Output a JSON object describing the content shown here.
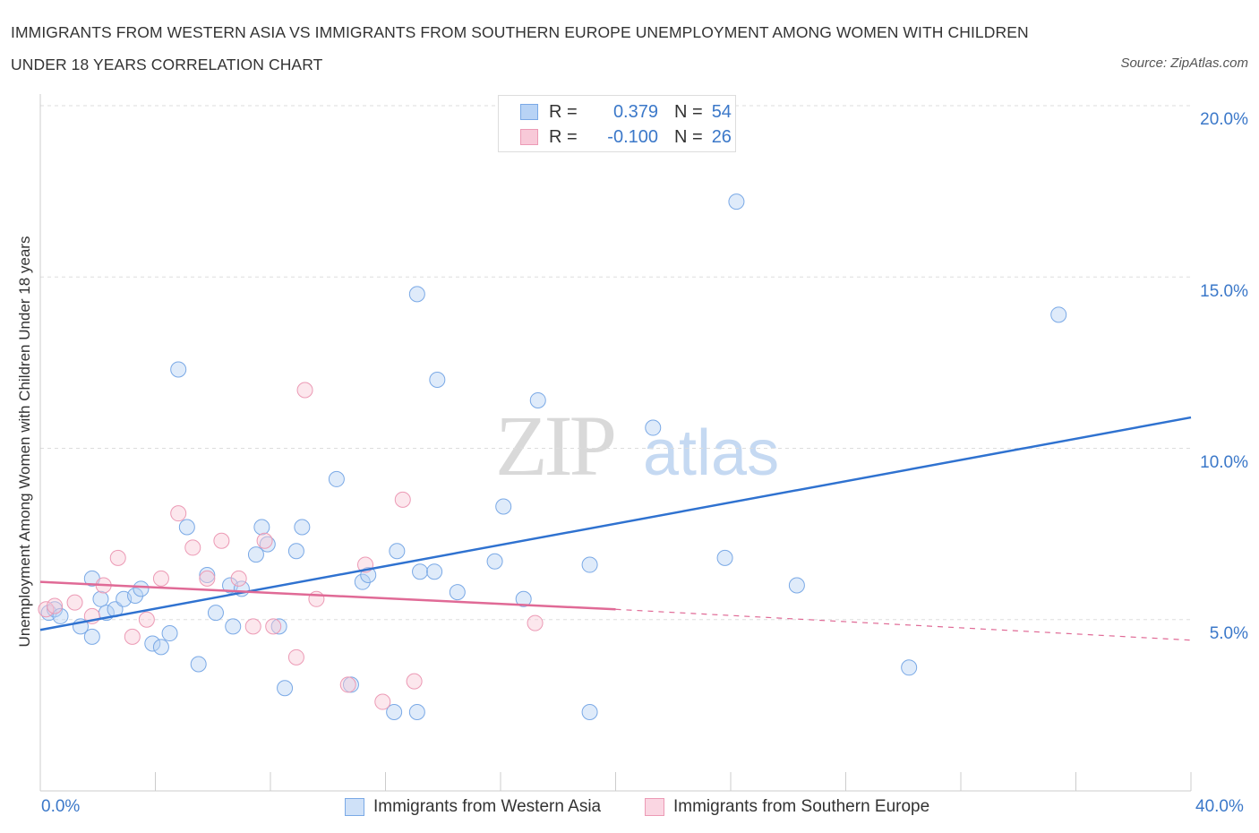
{
  "title": "IMMIGRANTS FROM WESTERN ASIA VS IMMIGRANTS FROM SOUTHERN EUROPE UNEMPLOYMENT AMONG WOMEN WITH CHILDREN UNDER 18 YEARS CORRELATION CHART",
  "source": "Source: ZipAtlas.com",
  "watermark": {
    "zip": "ZIP",
    "atlas": "atlas"
  },
  "legend": {
    "r_label": "R =",
    "n_label": "N =",
    "series": [
      {
        "r": "0.379",
        "n": "54",
        "fill": "#b8d3f5",
        "stroke": "#7aa9e6"
      },
      {
        "r": "-0.100",
        "n": "26",
        "fill": "#f8c9d8",
        "stroke": "#ec9ab5"
      }
    ]
  },
  "colors": {
    "blue_line": "#2f72d0",
    "pink_line": "#e06a96",
    "axis_text": "#3b78c9",
    "grid": "#dddddd"
  },
  "chart_data": {
    "type": "scatter",
    "title": "IMMIGRANTS FROM WESTERN ASIA VS IMMIGRANTS FROM SOUTHERN EUROPE UNEMPLOYMENT AMONG WOMEN WITH CHILDREN UNDER 18 YEARS CORRELATION CHART",
    "xlabel": "",
    "ylabel": "Unemployment Among Women with Children Under 18 years",
    "xlim": [
      0,
      40
    ],
    "ylim": [
      0,
      20
    ],
    "x_tick_labels": [
      "0.0%",
      "40.0%"
    ],
    "y_tick_labels": [
      "20.0%",
      "15.0%",
      "10.0%",
      "5.0%"
    ],
    "y_ticks": [
      20,
      15,
      10,
      5
    ],
    "grid": true,
    "legend_position": "top-center",
    "series": [
      {
        "name": "Immigrants from Western Asia",
        "color": "#7aa9e6",
        "trend": {
          "x0": 0,
          "y0": 4.7,
          "x1": 40,
          "y1": 10.9
        },
        "points": [
          [
            0.3,
            5.2
          ],
          [
            0.5,
            5.3
          ],
          [
            0.7,
            5.1
          ],
          [
            1.4,
            4.8
          ],
          [
            1.8,
            4.5
          ],
          [
            1.8,
            6.2
          ],
          [
            2.1,
            5.6
          ],
          [
            2.3,
            5.2
          ],
          [
            2.6,
            5.3
          ],
          [
            2.9,
            5.6
          ],
          [
            3.3,
            5.7
          ],
          [
            3.5,
            5.9
          ],
          [
            3.9,
            4.3
          ],
          [
            4.2,
            4.2
          ],
          [
            4.5,
            4.6
          ],
          [
            4.8,
            12.3
          ],
          [
            5.1,
            7.7
          ],
          [
            5.5,
            3.7
          ],
          [
            5.8,
            6.3
          ],
          [
            6.1,
            5.2
          ],
          [
            6.6,
            6.0
          ],
          [
            6.7,
            4.8
          ],
          [
            7.0,
            5.9
          ],
          [
            7.5,
            6.9
          ],
          [
            7.7,
            7.7
          ],
          [
            7.9,
            7.2
          ],
          [
            8.3,
            4.8
          ],
          [
            8.5,
            3.0
          ],
          [
            8.9,
            7.0
          ],
          [
            9.1,
            7.7
          ],
          [
            10.3,
            9.1
          ],
          [
            10.8,
            3.1
          ],
          [
            11.2,
            6.1
          ],
          [
            11.4,
            6.3
          ],
          [
            12.3,
            2.3
          ],
          [
            12.4,
            7.0
          ],
          [
            13.1,
            2.3
          ],
          [
            13.1,
            14.5
          ],
          [
            13.2,
            6.4
          ],
          [
            13.7,
            6.4
          ],
          [
            13.8,
            12.0
          ],
          [
            14.5,
            5.8
          ],
          [
            15.8,
            6.7
          ],
          [
            16.1,
            8.3
          ],
          [
            16.8,
            5.6
          ],
          [
            17.3,
            11.4
          ],
          [
            19.1,
            6.6
          ],
          [
            19.1,
            2.3
          ],
          [
            21.3,
            10.6
          ],
          [
            23.8,
            6.8
          ],
          [
            24.2,
            17.2
          ],
          [
            26.3,
            6.0
          ],
          [
            30.2,
            3.6
          ],
          [
            35.4,
            13.9
          ]
        ]
      },
      {
        "name": "Immigrants from Southern Europe",
        "color": "#ec9ab5",
        "trend": {
          "x0": 0,
          "y0": 6.1,
          "x1": 20,
          "y1": 5.3,
          "dashed_to": {
            "x": 40,
            "y": 4.4
          }
        },
        "points": [
          [
            0.2,
            5.3
          ],
          [
            0.5,
            5.4
          ],
          [
            1.2,
            5.5
          ],
          [
            1.8,
            5.1
          ],
          [
            2.2,
            6.0
          ],
          [
            2.7,
            6.8
          ],
          [
            3.2,
            4.5
          ],
          [
            3.7,
            5.0
          ],
          [
            4.2,
            6.2
          ],
          [
            4.8,
            8.1
          ],
          [
            5.3,
            7.1
          ],
          [
            5.8,
            6.2
          ],
          [
            6.3,
            7.3
          ],
          [
            6.9,
            6.2
          ],
          [
            7.4,
            4.8
          ],
          [
            7.8,
            7.3
          ],
          [
            8.1,
            4.8
          ],
          [
            8.9,
            3.9
          ],
          [
            9.2,
            11.7
          ],
          [
            9.6,
            5.6
          ],
          [
            10.7,
            3.1
          ],
          [
            11.3,
            6.6
          ],
          [
            11.9,
            2.6
          ],
          [
            12.6,
            8.5
          ],
          [
            13.0,
            3.2
          ],
          [
            17.2,
            4.9
          ]
        ]
      }
    ]
  },
  "bottom_legend": [
    "Immigrants from Western Asia",
    "Immigrants from Southern Europe"
  ]
}
